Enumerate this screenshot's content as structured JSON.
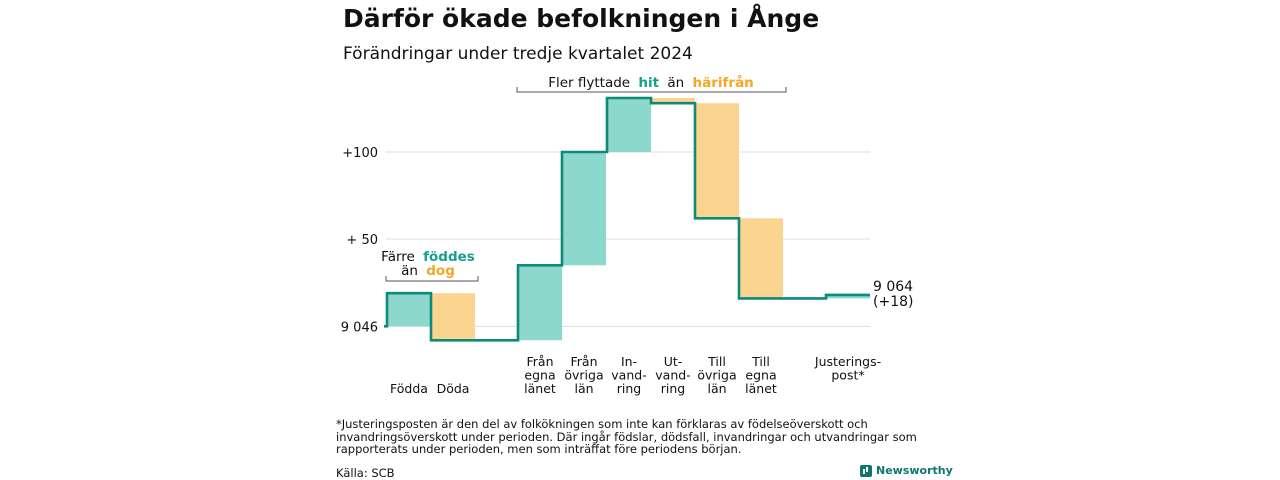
{
  "title": "Därför ökade befolkningen i Ånge",
  "subtitle": "Förändringar under tredje kvartalet 2024",
  "footnote": "*Justeringsposten är den del av folkökningen som inte kan förklaras av födelseöverskott och invandringsöverskott under perioden. Där ingår födslar, dödsfall, invandringar och utvandringar som rapporterats under perioden, men som inträffat före periodens början.",
  "source": "Källa: SCB",
  "brand": "Newsworthy",
  "colors": {
    "increase": "#8dd8cc",
    "decrease": "#fbd58f",
    "line": "#0e8a7a",
    "grid": "#dddddd",
    "teal_text": "#13a08f",
    "orange_text": "#f2a823"
  },
  "annotations": {
    "births_deaths": {
      "line1": "Färre",
      "word1": "föddes",
      "line2": "än",
      "word2": "dog"
    },
    "migration": {
      "prefix": "Fler flyttade",
      "word1": "hit",
      "middle": "än",
      "word2": "härifrån"
    }
  },
  "chart_data": {
    "type": "waterfall",
    "start": 9046,
    "end_label_value": "9 064",
    "end_label_change": "(+18)",
    "yticks": [
      {
        "offset": 0,
        "label": "9 046"
      },
      {
        "offset": 50,
        "label": "+ 50"
      },
      {
        "offset": 100,
        "label": "+100"
      }
    ],
    "ylim": [
      -9,
      131
    ],
    "steps": [
      {
        "label": [
          "Födda"
        ],
        "value": 19
      },
      {
        "label": [
          "Döda"
        ],
        "value": -27
      },
      {
        "label": [
          "Från",
          "egna",
          "länet"
        ],
        "value": 43
      },
      {
        "label": [
          "Från",
          "övriga",
          "län"
        ],
        "value": 65
      },
      {
        "label": [
          "In-",
          "vand-",
          "ring"
        ],
        "value": 31
      },
      {
        "label": [
          "Ut-",
          "vand-",
          "ring"
        ],
        "value": -3
      },
      {
        "label": [
          "Till",
          "övriga",
          "län"
        ],
        "value": -66
      },
      {
        "label": [
          "Till",
          "egna",
          "länet"
        ],
        "value": -46
      },
      {
        "label": [
          "Justerings-",
          "post*"
        ],
        "value": 2
      }
    ]
  }
}
